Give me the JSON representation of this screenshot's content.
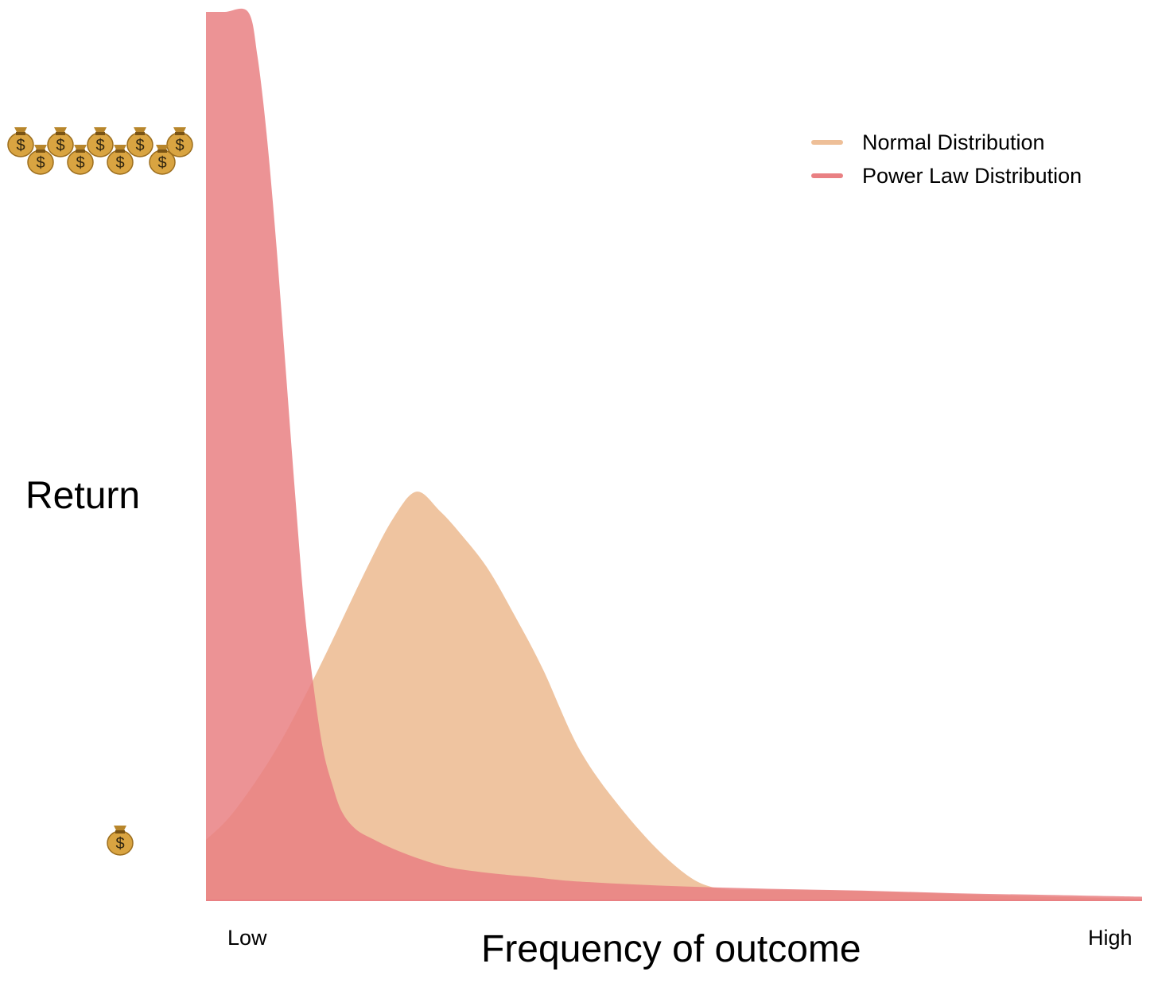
{
  "chart_data": {
    "type": "area",
    "xlabel": "Frequency of outcome",
    "ylabel": "Return",
    "x_tick_labels": [
      "Low",
      "High"
    ],
    "y_icons": {
      "high_return": "money-bag-cluster-icon",
      "low_return": "money-bag-icon"
    },
    "xlim": [
      0,
      1
    ],
    "ylim": [
      0,
      1
    ],
    "grid": false,
    "legend_position": "top-right",
    "series": [
      {
        "name": "Normal Distribution",
        "color": "#eebf98",
        "x": [
          0,
          0.03,
          0.075,
          0.12,
          0.17,
          0.2,
          0.225,
          0.25,
          0.27,
          0.3,
          0.33,
          0.36,
          0.4,
          0.45,
          0.5,
          0.54,
          0.595,
          0.68,
          0.8,
          0.9,
          1.0
        ],
        "y": [
          0.068,
          0.1,
          0.17,
          0.26,
          0.37,
          0.43,
          0.46,
          0.438,
          0.415,
          0.375,
          0.32,
          0.26,
          0.168,
          0.095,
          0.04,
          0.015,
          0.012,
          0.011,
          0.007,
          0.004,
          0.002
        ]
      },
      {
        "name": "Power Law Distribution",
        "color": "#e98083",
        "x": [
          0,
          0.02,
          0.045,
          0.055,
          0.065,
          0.075,
          0.085,
          0.095,
          0.105,
          0.115,
          0.125,
          0.135,
          0.145,
          0.16,
          0.18,
          0.2,
          0.23,
          0.26,
          0.3,
          0.35,
          0.4,
          0.5,
          0.6,
          0.7,
          0.8,
          0.9,
          1.0
        ],
        "y": [
          1.0,
          1.0,
          1.0,
          0.95,
          0.86,
          0.74,
          0.6,
          0.46,
          0.33,
          0.24,
          0.17,
          0.13,
          0.1,
          0.08,
          0.068,
          0.058,
          0.046,
          0.037,
          0.031,
          0.026,
          0.021,
          0.016,
          0.013,
          0.011,
          0.008,
          0.006,
          0.004
        ]
      }
    ]
  }
}
